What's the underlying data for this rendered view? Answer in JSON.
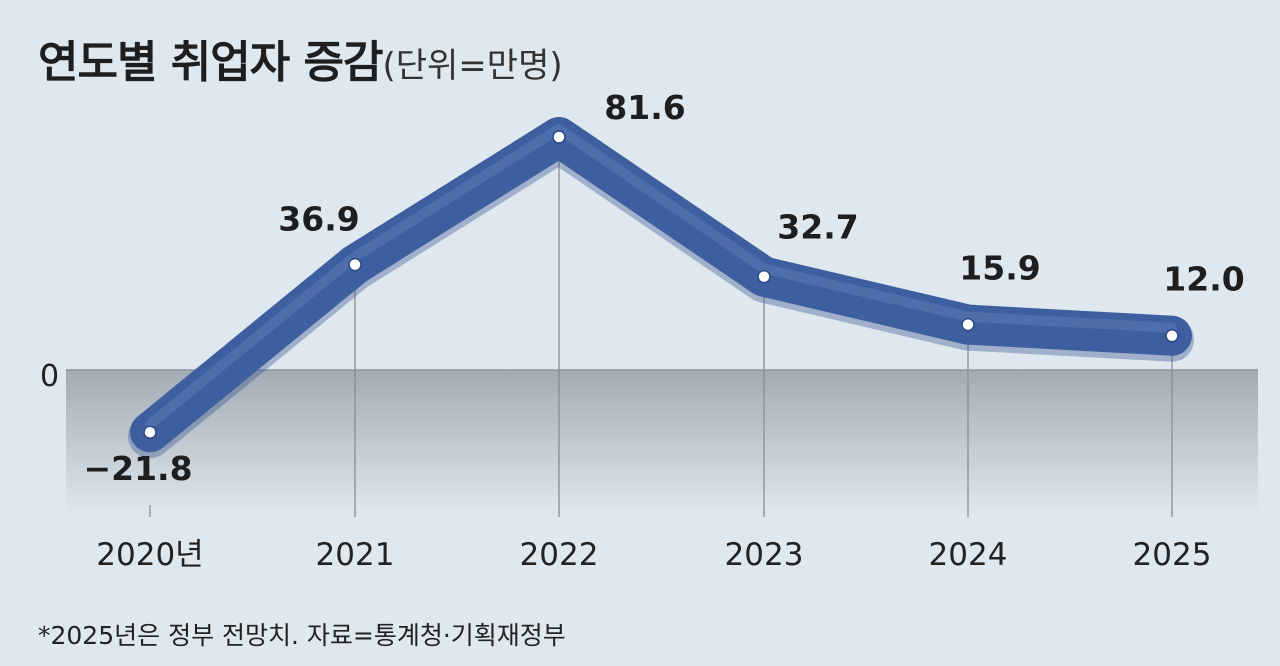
{
  "title": {
    "main": "연도별 취업자 증감",
    "unit": "(단위=만명)"
  },
  "note": "*2025년은 정부 전망치. 자료=통계청·기획재정부",
  "zero_label": "0",
  "colors": {
    "background": "#dfe7ef",
    "line": "#3d5f9f",
    "negative_band": "#a9b1ba",
    "text": "#1e1e1e"
  },
  "chart_data": {
    "type": "line",
    "title": "연도별 취업자 증감",
    "ylabel": "(단위=만명)",
    "categories": [
      "2020년",
      "2021",
      "2022",
      "2023",
      "2024",
      "2025"
    ],
    "series": [
      {
        "values": [
          -21.8,
          36.9,
          81.6,
          32.7,
          15.9,
          12.0
        ]
      }
    ],
    "data_labels": [
      "−21.8",
      "36.9",
      "81.6",
      "32.7",
      "15.9",
      "12.0"
    ],
    "ylim": [
      -30,
      95
    ],
    "grid": false,
    "legend": "none"
  }
}
